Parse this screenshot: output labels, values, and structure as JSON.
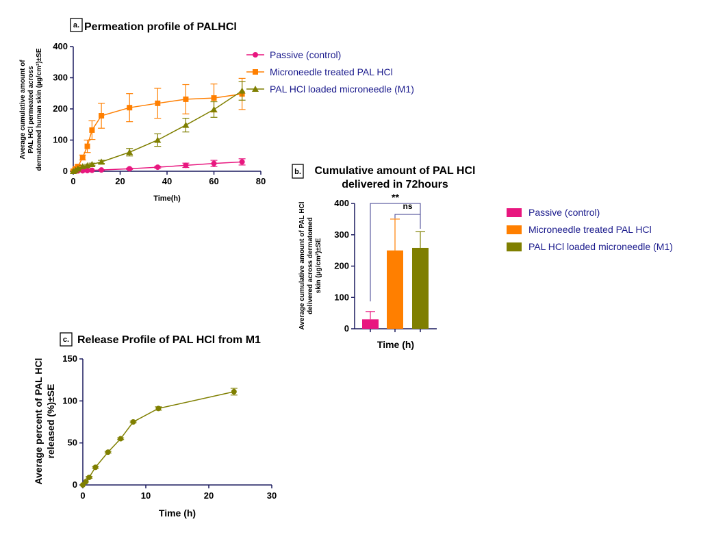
{
  "chart_data": [
    {
      "id": "a",
      "type": "line",
      "panel_tag": "a.",
      "title": "Permeation profile of PALHCl",
      "xlabel": "Time(h)",
      "ylabel_lines": [
        "Average cumulative amount of",
        "PAL HCl permeated  across",
        "dermatomed human skin (µg/cm²)±SE"
      ],
      "xlim": [
        0,
        80
      ],
      "ylim": [
        0,
        400
      ],
      "x_ticks": [
        0,
        20,
        40,
        60,
        80
      ],
      "y_ticks": [
        0,
        100,
        200,
        300,
        400
      ],
      "legend_position": "right",
      "series": [
        {
          "name": "Passive (control)",
          "color": "#e8177f",
          "marker": "circle",
          "x": [
            0,
            1,
            2,
            4,
            6,
            8,
            12,
            24,
            36,
            48,
            60,
            72
          ],
          "y": [
            0,
            0.5,
            1,
            1.5,
            2,
            3,
            4,
            8,
            13,
            19,
            25,
            30
          ],
          "err": [
            0,
            0,
            0,
            0,
            0,
            0,
            1,
            2,
            3,
            7,
            10,
            10
          ]
        },
        {
          "name": "Microneedle treated PAL HCl",
          "color": "#ff7f00",
          "marker": "square",
          "x": [
            0,
            1,
            2,
            4,
            6,
            8,
            12,
            24,
            36,
            48,
            60,
            72
          ],
          "y": [
            0,
            8,
            15,
            44,
            80,
            132,
            178,
            204,
            218,
            231,
            235,
            248
          ],
          "err": [
            0,
            3,
            5,
            8,
            20,
            30,
            40,
            45,
            48,
            47,
            45,
            50
          ]
        },
        {
          "name": "PAL HCl loaded microneedle (M1)",
          "color": "#7f7f00",
          "marker": "triangle",
          "x": [
            0,
            1,
            2,
            4,
            6,
            8,
            12,
            24,
            36,
            48,
            60,
            72
          ],
          "y": [
            0,
            3,
            8,
            15,
            18,
            22,
            30,
            61,
            100,
            148,
            198,
            258
          ],
          "err": [
            0,
            1,
            2,
            3,
            4,
            4,
            5,
            12,
            20,
            22,
            25,
            30
          ]
        }
      ]
    },
    {
      "id": "b",
      "type": "bar",
      "panel_tag": "b.",
      "title_lines": [
        "Cumulative amount of PAL HCl",
        "delivered in 72hours"
      ],
      "xlabel": "Time (h)",
      "ylabel_lines": [
        "Average cumulative amount of PAL HCl",
        "delivered across dermatomed",
        "skin (µg/cm²)±SE"
      ],
      "ylim": [
        0,
        400
      ],
      "y_ticks": [
        0,
        100,
        200,
        300,
        400
      ],
      "legend_position": "right",
      "series": [
        {
          "name": "Passive (control)",
          "color": "#e8177f",
          "value": 30,
          "err": 25
        },
        {
          "name": "Microneedle treated PAL HCl",
          "color": "#ff7f00",
          "value": 250,
          "err": 100
        },
        {
          "name": "PAL HCl loaded microneedle (M1)",
          "color": "#7f7f00",
          "value": 258,
          "err": 52
        }
      ],
      "annotations": [
        {
          "text": "**",
          "from": 0,
          "to": 2,
          "level": 1
        },
        {
          "text": "ns",
          "from": 1,
          "to": 2,
          "level": 0
        }
      ]
    },
    {
      "id": "c",
      "type": "line",
      "panel_tag": "c.",
      "title": "Release Profile of PAL HCl from M1",
      "xlabel": "Time (h)",
      "ylabel_lines": [
        "Average percent of PAL HCl",
        "released (%)±SE"
      ],
      "xlim": [
        0,
        30
      ],
      "ylim": [
        0,
        150
      ],
      "x_ticks": [
        0,
        10,
        20,
        30
      ],
      "y_ticks": [
        0,
        50,
        100,
        150
      ],
      "series": [
        {
          "name": "",
          "color": "#7f7f00",
          "marker": "circle",
          "x": [
            0,
            0.5,
            1,
            2,
            4,
            6,
            8,
            12,
            24
          ],
          "y": [
            0,
            4,
            9,
            21,
            39,
            55,
            75,
            91,
            111
          ],
          "err": [
            0,
            0,
            1,
            1,
            1,
            1,
            1,
            2,
            4
          ]
        }
      ]
    }
  ]
}
